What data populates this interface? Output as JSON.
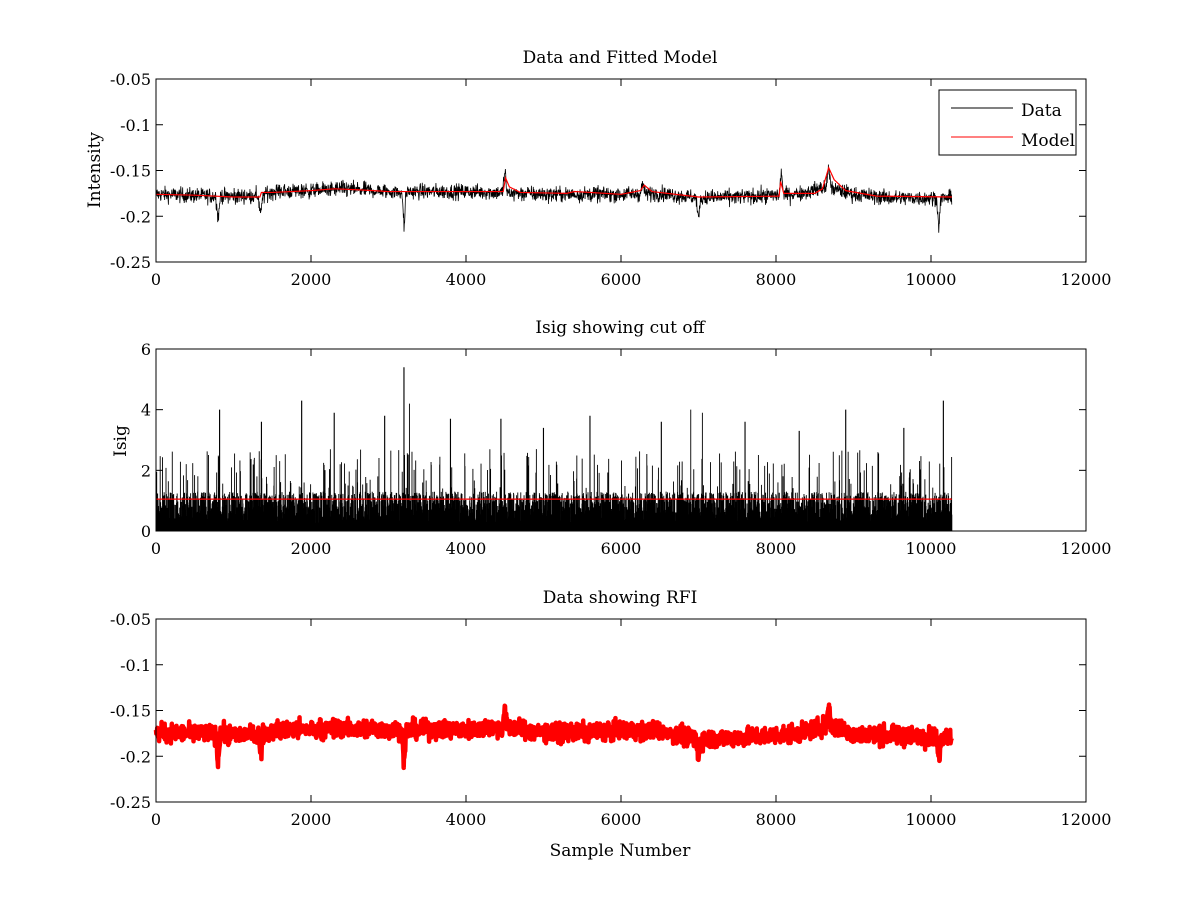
{
  "chart_data": [
    {
      "id": "panel1",
      "type": "line",
      "title": "Data and Fitted Model",
      "xlabel": "",
      "ylabel": "Intensity",
      "xlim": [
        0,
        12000
      ],
      "ylim": [
        -0.25,
        -0.05
      ],
      "y_reversed": true,
      "xticks": [
        0,
        2000,
        4000,
        6000,
        8000,
        10000,
        12000
      ],
      "xtick_labels": [
        "0",
        "2000",
        "4000",
        "6000",
        "8000",
        "10000",
        "12000"
      ],
      "yticks": [
        -0.05,
        -0.1,
        -0.15,
        -0.2,
        -0.25
      ],
      "ytick_labels": [
        "-0.05",
        "-0.1",
        "-0.15",
        "-0.2",
        "-0.25"
      ],
      "grid": false,
      "legend": {
        "placement": "top-right",
        "entries": [
          {
            "label": "Data",
            "color": "#000000"
          },
          {
            "label": "Model",
            "color": "#ff0000"
          }
        ]
      },
      "series": [
        {
          "name": "Data",
          "color": "#000000",
          "style": "noisy-line",
          "x_range": [
            0,
            10270
          ],
          "n_points": 10270,
          "baseline": [
            [
              0,
              -0.176
            ],
            [
              800,
              -0.178
            ],
            [
              1350,
              -0.178
            ],
            [
              1500,
              -0.173
            ],
            [
              2000,
              -0.172
            ],
            [
              2400,
              -0.17
            ],
            [
              3000,
              -0.173
            ],
            [
              4000,
              -0.173
            ],
            [
              4400,
              -0.174
            ],
            [
              5000,
              -0.176
            ],
            [
              5500,
              -0.176
            ],
            [
              6000,
              -0.176
            ],
            [
              6500,
              -0.175
            ],
            [
              7000,
              -0.18
            ],
            [
              7800,
              -0.178
            ],
            [
              8300,
              -0.175
            ],
            [
              8650,
              -0.168
            ],
            [
              9000,
              -0.176
            ],
            [
              9500,
              -0.18
            ],
            [
              10270,
              -0.18
            ]
          ],
          "noise_amplitude": 0.006,
          "peaks": [
            [
              4500,
              -0.145
            ],
            [
              6280,
              -0.163
            ],
            [
              8070,
              -0.146
            ],
            [
              8680,
              -0.138
            ]
          ],
          "dips": [
            [
              800,
              -0.212
            ],
            [
              1350,
              -0.207
            ],
            [
              3200,
              -0.218
            ],
            [
              7000,
              -0.21
            ],
            [
              10100,
              -0.215
            ]
          ]
        },
        {
          "name": "Model",
          "color": "#ff0000",
          "style": "line",
          "points": [
            [
              0,
              -0.176
            ],
            [
              500,
              -0.177
            ],
            [
              1000,
              -0.179
            ],
            [
              1340,
              -0.179
            ],
            [
              1360,
              -0.174
            ],
            [
              1500,
              -0.174
            ],
            [
              2000,
              -0.172
            ],
            [
              2300,
              -0.17
            ],
            [
              2600,
              -0.171
            ],
            [
              3000,
              -0.173
            ],
            [
              3500,
              -0.173
            ],
            [
              4000,
              -0.173
            ],
            [
              4480,
              -0.173
            ],
            [
              4510,
              -0.158
            ],
            [
              4560,
              -0.168
            ],
            [
              4700,
              -0.174
            ],
            [
              5300,
              -0.175
            ],
            [
              5400,
              -0.173
            ],
            [
              6000,
              -0.176
            ],
            [
              6250,
              -0.172
            ],
            [
              6300,
              -0.166
            ],
            [
              6400,
              -0.173
            ],
            [
              7000,
              -0.179
            ],
            [
              8040,
              -0.178
            ],
            [
              8060,
              -0.162
            ],
            [
              8100,
              -0.175
            ],
            [
              8500,
              -0.175
            ],
            [
              8600,
              -0.17
            ],
            [
              8680,
              -0.147
            ],
            [
              8750,
              -0.16
            ],
            [
              8900,
              -0.172
            ],
            [
              9300,
              -0.178
            ],
            [
              10270,
              -0.179
            ]
          ]
        }
      ]
    },
    {
      "id": "panel2",
      "type": "line",
      "title": "Isig showing cut off",
      "xlabel": "",
      "ylabel": "Isig",
      "xlim": [
        0,
        12000
      ],
      "ylim": [
        0,
        6
      ],
      "y_reversed": false,
      "xticks": [
        0,
        2000,
        4000,
        6000,
        8000,
        10000,
        12000
      ],
      "xtick_labels": [
        "0",
        "2000",
        "4000",
        "6000",
        "8000",
        "10000",
        "12000"
      ],
      "yticks": [
        0,
        2,
        4,
        6
      ],
      "ytick_labels": [
        "0",
        "2",
        "4",
        "6"
      ],
      "grid": false,
      "series": [
        {
          "name": "Isig",
          "color": "#000000",
          "style": "noisy-spikes",
          "x_range": [
            0,
            10270
          ],
          "n_points": 10270,
          "typical_max": 1.3,
          "tall_spikes": [
            [
              820,
              4.0
            ],
            [
              1360,
              3.6
            ],
            [
              1880,
              4.3
            ],
            [
              2300,
              3.9
            ],
            [
              2950,
              3.8
            ],
            [
              3200,
              5.4
            ],
            [
              3270,
              4.2
            ],
            [
              3800,
              3.7
            ],
            [
              4450,
              3.7
            ],
            [
              5000,
              3.4
            ],
            [
              5600,
              3.8
            ],
            [
              6520,
              3.6
            ],
            [
              6900,
              4.0
            ],
            [
              7050,
              3.9
            ],
            [
              7600,
              3.6
            ],
            [
              8300,
              3.3
            ],
            [
              8900,
              4.0
            ],
            [
              9650,
              3.4
            ],
            [
              10160,
              4.3
            ]
          ]
        },
        {
          "name": "Cut off",
          "color": "#ff0000",
          "style": "line",
          "points": [
            [
              0,
              1.05
            ],
            [
              10270,
              1.05
            ]
          ]
        }
      ]
    },
    {
      "id": "panel3",
      "type": "scatter",
      "title": "Data showing RFI",
      "xlabel": "Sample Number",
      "ylabel": "",
      "xlim": [
        0,
        12000
      ],
      "ylim": [
        -0.25,
        -0.05
      ],
      "y_reversed": true,
      "xticks": [
        0,
        2000,
        4000,
        6000,
        8000,
        10000,
        12000
      ],
      "xtick_labels": [
        "0",
        "2000",
        "4000",
        "6000",
        "8000",
        "10000",
        "12000"
      ],
      "yticks": [
        -0.05,
        -0.1,
        -0.15,
        -0.2,
        -0.25
      ],
      "ytick_labels": [
        "-0.05",
        "-0.1",
        "-0.15",
        "-0.2",
        "-0.25"
      ],
      "grid": false,
      "series": [
        {
          "name": "RFI",
          "color": "#ff0000",
          "style": "dense-markers",
          "marker": "diamond",
          "x_range": [
            0,
            10270
          ],
          "n_points": 10270,
          "baseline": [
            [
              0,
              -0.174
            ],
            [
              800,
              -0.176
            ],
            [
              1350,
              -0.176
            ],
            [
              1500,
              -0.172
            ],
            [
              2000,
              -0.171
            ],
            [
              2400,
              -0.169
            ],
            [
              3000,
              -0.171
            ],
            [
              4000,
              -0.171
            ],
            [
              4500,
              -0.168
            ],
            [
              5000,
              -0.174
            ],
            [
              5500,
              -0.174
            ],
            [
              6000,
              -0.172
            ],
            [
              6500,
              -0.172
            ],
            [
              7000,
              -0.182
            ],
            [
              7800,
              -0.178
            ],
            [
              8300,
              -0.175
            ],
            [
              8650,
              -0.166
            ],
            [
              9000,
              -0.176
            ],
            [
              9500,
              -0.178
            ],
            [
              10270,
              -0.178
            ]
          ],
          "noise_amplitude": 0.007,
          "peaks": [
            [
              4500,
              -0.146
            ],
            [
              8680,
              -0.138
            ]
          ],
          "dips": [
            [
              800,
              -0.212
            ],
            [
              1350,
              -0.205
            ],
            [
              3200,
              -0.212
            ],
            [
              7000,
              -0.207
            ],
            [
              10100,
              -0.21
            ]
          ]
        }
      ]
    }
  ]
}
